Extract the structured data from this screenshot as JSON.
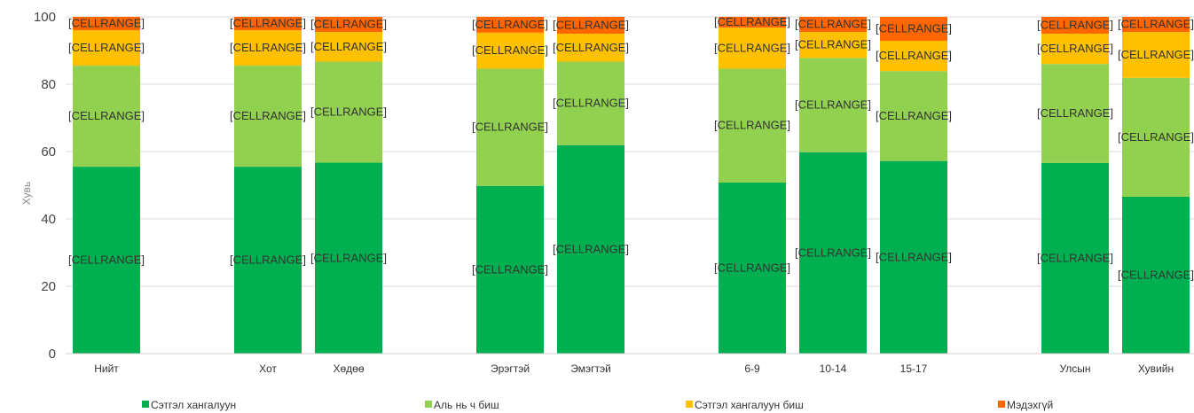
{
  "chart_data": {
    "type": "bar",
    "stacked": true,
    "title": "",
    "xlabel": "",
    "ylabel": "Хувь",
    "ylim": [
      0,
      100
    ],
    "yticks": [
      0,
      20,
      40,
      60,
      80,
      100
    ],
    "grid": true,
    "legend_position": "bottom",
    "data_label_text": "[CELLRANGE]",
    "categories": [
      "Нийт",
      "",
      "Хот",
      "Хөдөө",
      "",
      "Эрэгтэй",
      "Эмэгтэй",
      "",
      "6-9",
      "10-14",
      "15-17",
      "",
      "Улсын",
      "Хувийн"
    ],
    "series": [
      {
        "name": "Сэтгэл хангалуун",
        "color": "#00b050",
        "values": [
          55.5,
          null,
          55.5,
          56.7,
          null,
          49.8,
          61.9,
          null,
          50.8,
          59.8,
          57.2,
          null,
          56.6,
          46.6
        ]
      },
      {
        "name": "Аль нь ч биш",
        "color": "#92d050",
        "values": [
          30.0,
          null,
          30.0,
          30.0,
          null,
          34.8,
          24.8,
          null,
          33.8,
          28.0,
          26.7,
          null,
          29.4,
          35.3
        ]
      },
      {
        "name": "Сэтгэл хангалуун биш",
        "color": "#ffc000",
        "values": [
          10.5,
          null,
          10.5,
          8.8,
          null,
          10.7,
          8.3,
          null,
          12.2,
          7.7,
          9.0,
          null,
          9.0,
          13.6
        ]
      },
      {
        "name": "Мэдэхгүй",
        "color": "#ff6600",
        "values": [
          4.0,
          null,
          4.0,
          4.5,
          null,
          4.7,
          5.0,
          null,
          3.2,
          4.5,
          7.1,
          null,
          5.0,
          4.5
        ]
      }
    ]
  }
}
